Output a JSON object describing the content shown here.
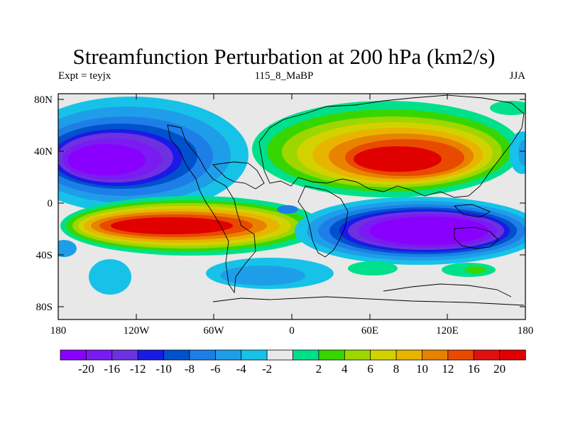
{
  "header": {
    "title": "Streamfunction Perturbation at 200 hPa (km2/s)",
    "left": "Expt = teyjx",
    "center": "115_8_MaBP",
    "right": "JJA"
  },
  "map": {
    "lat_labels": [
      "80N",
      "40N",
      "0",
      "40S",
      "80S"
    ],
    "lon_labels": [
      "180",
      "120W",
      "60W",
      "0",
      "60E",
      "120E",
      "180"
    ]
  },
  "colorbar": {
    "colors": [
      "#8a00ff",
      "#7a1bf2",
      "#6e31e0",
      "#1a1ae6",
      "#0052cc",
      "#1e7ee8",
      "#1e9ee8",
      "#17c2e8",
      "#e8e8e8",
      "#00e08a",
      "#38d600",
      "#9ed600",
      "#d2d200",
      "#e8b400",
      "#e88200",
      "#e84a00",
      "#e01010",
      "#e00000"
    ],
    "labels": [
      "-20",
      "-16",
      "-12",
      "-10",
      "-8",
      "-6",
      "-4",
      "-2",
      "2",
      "4",
      "6",
      "8",
      "10",
      "12",
      "16",
      "20"
    ]
  }
}
